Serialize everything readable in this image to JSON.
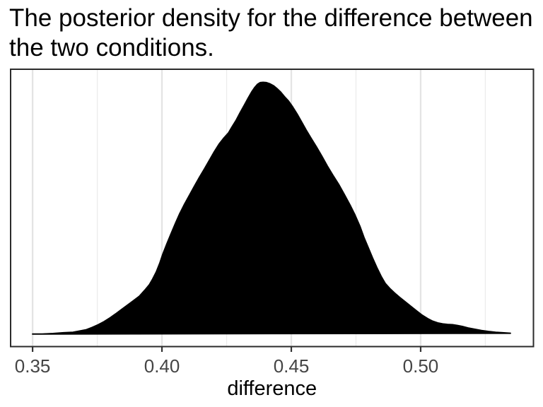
{
  "title": {
    "text": "The posterior density for the difference between the two conditions.",
    "lines": [
      "The posterior density for the difference between",
      "the two conditions."
    ]
  },
  "chart_data": {
    "type": "area",
    "subtype": "density",
    "title": "The posterior density for the difference between the two conditions.",
    "xlabel": "difference",
    "ylabel": "",
    "legend": "none",
    "grid": "vertical-only",
    "x_ticks": [
      0.35,
      0.4,
      0.45,
      0.5
    ],
    "x_tick_labels": [
      "0.35",
      "0.40",
      "0.45",
      "0.50"
    ],
    "x_minor_gridlines": [
      0.375,
      0.425,
      0.475,
      0.525
    ],
    "xlim": [
      0.3415,
      0.5436
    ],
    "ylim_norm": [
      -0.049,
      1.052
    ],
    "peak": {
      "x": 0.439,
      "density_norm": 1.0
    },
    "series": [
      {
        "name": "posterior-density",
        "x": [
          0.35,
          0.3538,
          0.3579,
          0.362,
          0.3656,
          0.3683,
          0.3708,
          0.373,
          0.3754,
          0.3776,
          0.3801,
          0.382,
          0.3842,
          0.3866,
          0.3888,
          0.3913,
          0.3934,
          0.3951,
          0.3964,
          0.3978,
          0.3992,
          0.4003,
          0.4019,
          0.4036,
          0.4052,
          0.4068,
          0.4087,
          0.4107,
          0.4126,
          0.4145,
          0.4164,
          0.4183,
          0.4202,
          0.4221,
          0.424,
          0.4257,
          0.427,
          0.4287,
          0.4303,
          0.432,
          0.4333,
          0.4347,
          0.4358,
          0.4369,
          0.438,
          0.4391,
          0.4404,
          0.4418,
          0.4432,
          0.4445,
          0.4459,
          0.4473,
          0.4489,
          0.4505,
          0.4522,
          0.4538,
          0.4557,
          0.4577,
          0.4596,
          0.4618,
          0.4639,
          0.4661,
          0.4683,
          0.4705,
          0.4727,
          0.4746,
          0.4765,
          0.4781,
          0.4798,
          0.4814,
          0.4831,
          0.4847,
          0.4863,
          0.488,
          0.4899,
          0.4918,
          0.494,
          0.4962,
          0.4984,
          0.5005,
          0.5027,
          0.5046,
          0.5066,
          0.5085,
          0.5104,
          0.5123,
          0.5142,
          0.5161,
          0.5183,
          0.5208,
          0.5235,
          0.5263,
          0.529,
          0.5317,
          0.5347
        ],
        "y_norm": [
          0.001,
          0.001,
          0.003,
          0.006,
          0.008,
          0.013,
          0.018,
          0.027,
          0.038,
          0.05,
          0.066,
          0.08,
          0.097,
          0.115,
          0.132,
          0.151,
          0.175,
          0.196,
          0.219,
          0.247,
          0.283,
          0.317,
          0.359,
          0.401,
          0.44,
          0.477,
          0.516,
          0.553,
          0.589,
          0.623,
          0.656,
          0.69,
          0.724,
          0.755,
          0.78,
          0.799,
          0.822,
          0.85,
          0.881,
          0.912,
          0.937,
          0.962,
          0.979,
          0.992,
          0.999,
          1.0,
          0.999,
          0.994,
          0.986,
          0.975,
          0.961,
          0.944,
          0.926,
          0.903,
          0.875,
          0.846,
          0.811,
          0.777,
          0.746,
          0.707,
          0.668,
          0.631,
          0.595,
          0.555,
          0.513,
          0.474,
          0.429,
          0.384,
          0.342,
          0.303,
          0.264,
          0.23,
          0.202,
          0.182,
          0.164,
          0.147,
          0.129,
          0.111,
          0.093,
          0.076,
          0.062,
          0.052,
          0.045,
          0.041,
          0.039,
          0.038,
          0.035,
          0.031,
          0.025,
          0.02,
          0.015,
          0.011,
          0.008,
          0.006,
          0.004
        ]
      }
    ]
  },
  "colors": {
    "background": "#FFFFFF",
    "density_fill": "#000000",
    "density_stroke": "#000000",
    "panel_border": "#2B2B2B",
    "panel_background": "#FFFFFF",
    "grid_major": "#E4E4E4",
    "grid_minor": "#ECECEC",
    "tick_mark": "#333333",
    "tick_label": "#454545",
    "axis_title": "#000000",
    "title": "#000000"
  }
}
